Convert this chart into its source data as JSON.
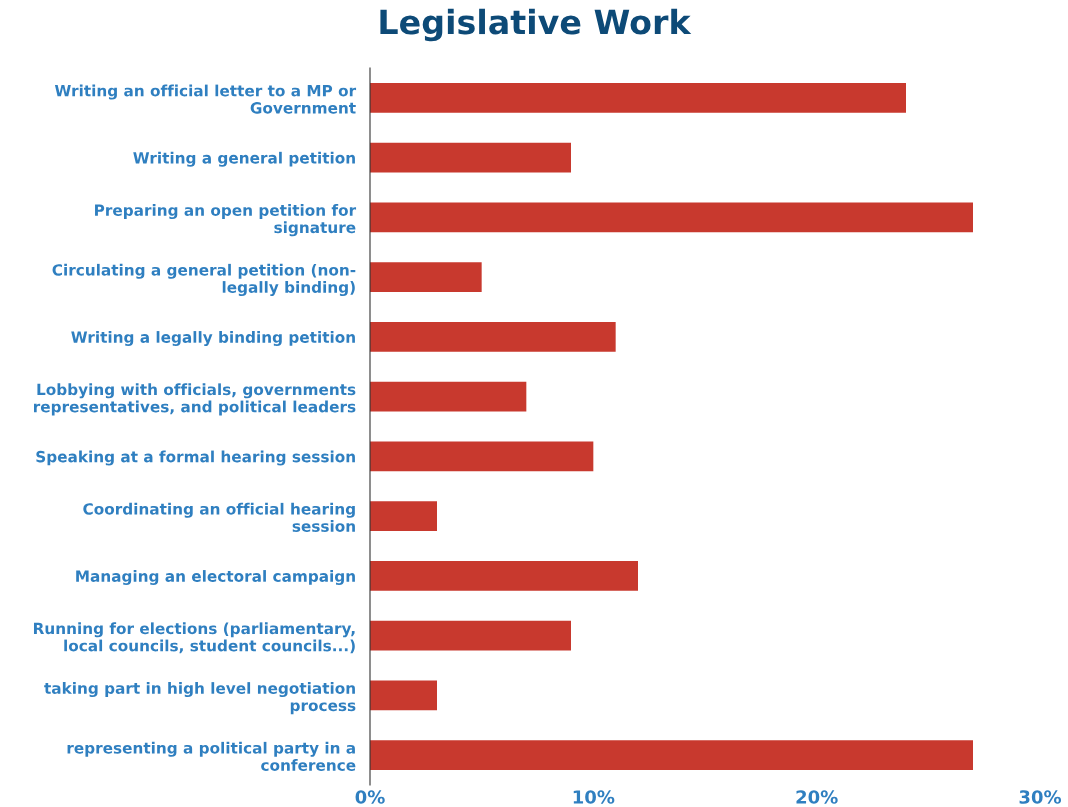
{
  "chart_data": {
    "type": "bar",
    "orientation": "horizontal",
    "title": "Legislative Work",
    "categories": [
      "Writing an official letter to a MP or\nGovernment",
      "Writing a general petition",
      "Preparing an open petition for\nsignature",
      "Circulating a general petition (non-\nlegally binding)",
      "Writing a legally binding petition",
      "Lobbying with officials, governments\nrepresentatives, and political leaders",
      "Speaking at a formal hearing session",
      "Coordinating an official hearing\nsession",
      "Managing an electoral campaign",
      "Running for elections (parliamentary,\nlocal councils, student councils...)",
      "taking part in high level negotiation\nprocess",
      "representing a political party in a\nconference"
    ],
    "values": [
      24,
      9,
      27,
      5,
      11,
      7,
      10,
      3,
      12,
      9,
      3,
      27
    ],
    "color": "#c8392e",
    "xlim": [
      0,
      30
    ],
    "xticks": [
      {
        "value": 0,
        "label": "0%"
      },
      {
        "value": 10,
        "label": "10%"
      },
      {
        "value": 20,
        "label": "20%"
      },
      {
        "value": 30,
        "label": "30%"
      }
    ],
    "grid": false,
    "legend": false
  }
}
